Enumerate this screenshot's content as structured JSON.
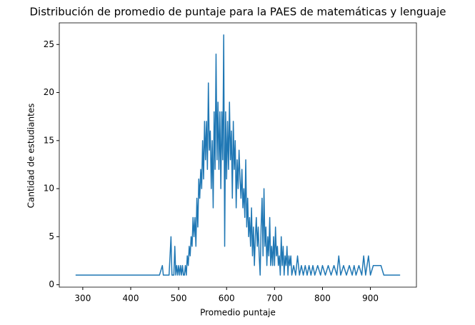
{
  "chart_data": {
    "type": "line",
    "title": "Distribución de promedio de puntaje para la PAES de matemáticas y lenguaje",
    "x_label": "Promedio puntaje",
    "y_label": "Cantidad de estudiantes",
    "series": [
      {
        "color": "#1f77b4",
        "x": [
          285,
          460,
          466,
          468,
          480,
          484,
          486,
          490,
          492,
          494,
          496,
          498,
          500,
          502,
          504,
          506,
          508,
          510,
          512,
          514,
          516,
          518,
          520,
          522,
          524,
          526,
          528,
          530,
          532,
          534,
          536,
          538,
          540,
          542,
          544,
          546,
          548,
          550,
          552,
          554,
          556,
          558,
          560,
          562,
          564,
          566,
          568,
          570,
          572,
          574,
          576,
          578,
          580,
          582,
          584,
          586,
          588,
          590,
          592,
          594,
          596,
          598,
          600,
          602,
          604,
          606,
          608,
          610,
          612,
          614,
          616,
          618,
          620,
          622,
          624,
          626,
          628,
          630,
          632,
          634,
          636,
          638,
          640,
          642,
          644,
          646,
          648,
          650,
          652,
          654,
          656,
          658,
          660,
          662,
          664,
          666,
          668,
          670,
          672,
          674,
          676,
          678,
          680,
          682,
          684,
          686,
          688,
          690,
          692,
          694,
          696,
          698,
          700,
          702,
          704,
          706,
          708,
          710,
          712,
          714,
          716,
          718,
          720,
          722,
          724,
          726,
          728,
          730,
          732,
          734,
          736,
          740,
          744,
          748,
          752,
          756,
          760,
          764,
          768,
          772,
          776,
          780,
          784,
          790,
          796,
          800,
          806,
          812,
          818,
          824,
          830,
          834,
          838,
          844,
          850,
          856,
          862,
          866,
          870,
          876,
          882,
          886,
          890,
          896,
          900,
          906,
          922,
          928,
          962
        ],
        "values": [
          1,
          1,
          2,
          1,
          1,
          5,
          1,
          1,
          4,
          1,
          2,
          1,
          2,
          1,
          2,
          1,
          2,
          1,
          1,
          2,
          1,
          3,
          2,
          4,
          3,
          5,
          4,
          7,
          5,
          7,
          4,
          9,
          6,
          11,
          9,
          12,
          10,
          15,
          11,
          17,
          13,
          17,
          12,
          21,
          14,
          16,
          10,
          15,
          8,
          18,
          12,
          24,
          13,
          19,
          12,
          18,
          10,
          18,
          13,
          26,
          4,
          18,
          11,
          17,
          12,
          19,
          13,
          16,
          9,
          17,
          12,
          15,
          8,
          13,
          10,
          14,
          11,
          9,
          12,
          8,
          10,
          7,
          13,
          6,
          9,
          5,
          7,
          4,
          8,
          3,
          6,
          2,
          5,
          7,
          4,
          6,
          3,
          1,
          6,
          9,
          3,
          10,
          4,
          6,
          2,
          5,
          3,
          7,
          2,
          4,
          2,
          5,
          2,
          6,
          3,
          4,
          2,
          3,
          1,
          5,
          2,
          4,
          1,
          3,
          2,
          4,
          1,
          3,
          2,
          3,
          1,
          2,
          1,
          3,
          1,
          2,
          1,
          2,
          1,
          2,
          1,
          2,
          1,
          2,
          1,
          2,
          1,
          2,
          1,
          2,
          1,
          3,
          1,
          2,
          1,
          2,
          1,
          2,
          1,
          2,
          1,
          3,
          1,
          3,
          1,
          2,
          2,
          1,
          1
        ]
      }
    ],
    "xlim": [
      251,
      996
    ],
    "xticks": [
      300,
      400,
      500,
      600,
      700,
      800,
      900
    ],
    "ylim": [
      -0.25,
      27.25
    ],
    "yticks": [
      0,
      5,
      10,
      15,
      20,
      25
    ]
  }
}
